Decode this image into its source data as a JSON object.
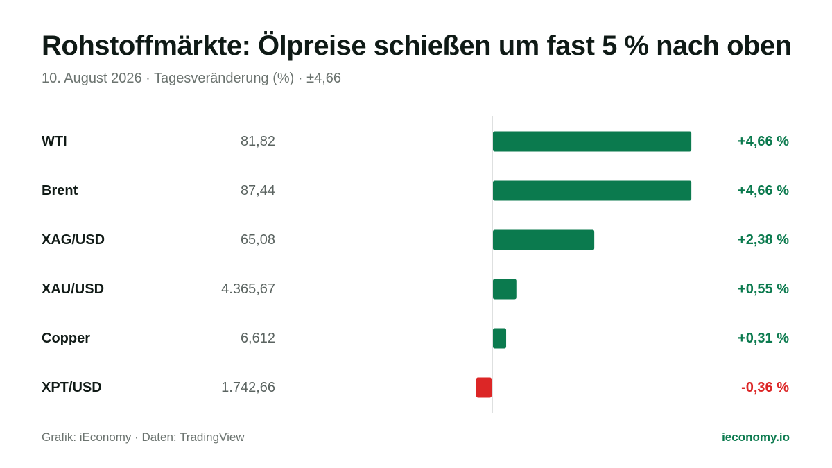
{
  "header": {
    "title": "Rohstoffmärkte: Ölpreise schießen um fast 5 % nach oben",
    "subtitle": "10. August 2026 · Tagesveränderung (%) · ±4,66"
  },
  "footer": {
    "source": "Grafik: iEconomy · Daten: TradingView",
    "brand": "ieconomy.io"
  },
  "colors": {
    "positive": "#0b7a4e",
    "negative": "#dc2626",
    "label": "#111b17",
    "price": "#5b6461",
    "axis": "#d4d6d5"
  },
  "chart_data": {
    "type": "bar",
    "orientation": "horizontal",
    "x_range": [
      -0.95,
      4.66
    ],
    "categories": [
      "WTI",
      "Brent",
      "XAG/USD",
      "XAU/USD",
      "Copper",
      "XPT/USD"
    ],
    "prices": [
      "81,82",
      "87,44",
      "65,08",
      "4.365,67",
      "6,612",
      "1.742,66"
    ],
    "values": [
      4.66,
      4.66,
      2.38,
      0.55,
      0.31,
      -0.36
    ],
    "value_labels": [
      "+4,66 %",
      "+4,66 %",
      "+2,38 %",
      "+0,55 %",
      "+0,31 %",
      "-0,36 %"
    ]
  }
}
